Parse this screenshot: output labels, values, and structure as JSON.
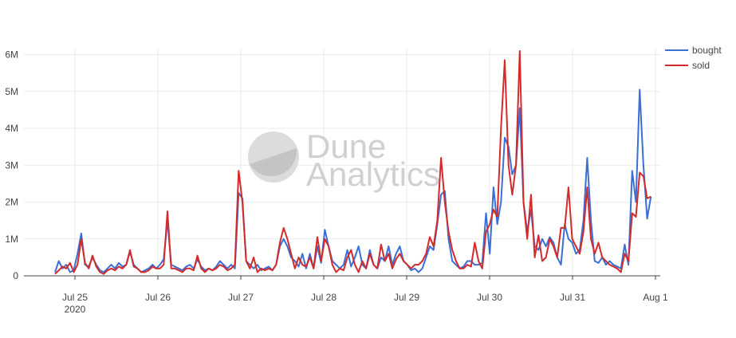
{
  "chart_data": {
    "type": "line",
    "title": "",
    "xlabel": "",
    "ylabel": "",
    "x_start": "Jul 24 2020 18:00",
    "x_step": "30 minutes",
    "x_ticks": [
      "Jul 25",
      "Jul 26",
      "Jul 27",
      "Jul 28",
      "Jul 29",
      "Jul 30",
      "Jul 31",
      "Aug 1"
    ],
    "x_tick_year": "2020",
    "y_ticks": [
      "0",
      "1M",
      "2M",
      "3M",
      "4M",
      "5M",
      "6M"
    ],
    "ylim": [
      0,
      6200000
    ],
    "grid": true,
    "legend_position": "top-right",
    "series": [
      {
        "name": "bought",
        "color": "#3a6fd6",
        "values": [
          100000,
          400000,
          200000,
          300000,
          100000,
          150000,
          600000,
          1150000,
          300000,
          250000,
          500000,
          300000,
          150000,
          100000,
          200000,
          300000,
          200000,
          350000,
          250000,
          300000,
          650000,
          300000,
          200000,
          100000,
          150000,
          200000,
          300000,
          200000,
          300000,
          450000,
          1500000,
          300000,
          250000,
          200000,
          150000,
          250000,
          300000,
          200000,
          450000,
          250000,
          150000,
          200000,
          150000,
          250000,
          400000,
          300000,
          200000,
          300000,
          200000,
          2250000,
          2100000,
          400000,
          300000,
          200000,
          300000,
          150000,
          200000,
          250000,
          150000,
          300000,
          800000,
          1000000,
          800000,
          500000,
          400000,
          250000,
          600000,
          200000,
          600000,
          200000,
          800000,
          350000,
          1250000,
          800000,
          400000,
          300000,
          200000,
          300000,
          700000,
          250000,
          500000,
          800000,
          300000,
          200000,
          700000,
          300000,
          200000,
          500000,
          400000,
          800000,
          300000,
          600000,
          800000,
          400000,
          300000,
          150000,
          200000,
          100000,
          200000,
          500000,
          800000,
          700000,
          1400000,
          2200000,
          2300000,
          1000000,
          400000,
          300000,
          200000,
          250000,
          400000,
          400000,
          300000,
          300000,
          350000,
          1700000,
          600000,
          2400000,
          1400000,
          2000000,
          3750000,
          3500000,
          2750000,
          3000000,
          4550000,
          2000000,
          1200000,
          1800000,
          800000,
          700000,
          1000000,
          800000,
          1050000,
          900000,
          500000,
          300000,
          1400000,
          1000000,
          900000,
          600000,
          700000,
          1500000,
          3200000,
          1500000,
          400000,
          350000,
          500000,
          300000,
          400000,
          300000,
          250000,
          200000,
          850000,
          300000,
          2850000,
          2000000,
          5050000,
          3000000,
          1550000,
          2150000
        ]
      },
      {
        "name": "sold",
        "color": "#d42a2a",
        "values": [
          50000,
          150000,
          250000,
          200000,
          350000,
          100000,
          300000,
          1000000,
          350000,
          200000,
          550000,
          250000,
          100000,
          50000,
          150000,
          200000,
          150000,
          250000,
          200000,
          300000,
          700000,
          250000,
          200000,
          100000,
          100000,
          150000,
          250000,
          200000,
          200000,
          300000,
          1750000,
          200000,
          200000,
          150000,
          100000,
          200000,
          200000,
          150000,
          550000,
          200000,
          100000,
          200000,
          150000,
          200000,
          300000,
          250000,
          150000,
          200000,
          300000,
          2850000,
          2000000,
          400000,
          200000,
          500000,
          100000,
          200000,
          150000,
          200000,
          150000,
          300000,
          900000,
          1300000,
          1000000,
          600000,
          200000,
          500000,
          300000,
          250000,
          500000,
          200000,
          1050000,
          400000,
          1000000,
          800000,
          300000,
          100000,
          200000,
          150000,
          500000,
          700000,
          300000,
          100000,
          400000,
          200000,
          600000,
          300000,
          200000,
          850000,
          400000,
          600000,
          200000,
          450000,
          600000,
          400000,
          300000,
          200000,
          300000,
          300000,
          400000,
          600000,
          1050000,
          800000,
          1500000,
          3200000,
          2000000,
          1200000,
          700000,
          400000,
          200000,
          200000,
          300000,
          250000,
          900000,
          400000,
          200000,
          1200000,
          1400000,
          1800000,
          1600000,
          4000000,
          5850000,
          3000000,
          2200000,
          3000000,
          6100000,
          2000000,
          1000000,
          2200000,
          500000,
          1100000,
          400000,
          500000,
          1000000,
          800000,
          500000,
          1300000,
          1300000,
          2400000,
          1000000,
          800000,
          600000,
          1200000,
          2400000,
          1000000,
          600000,
          900000,
          500000,
          400000,
          300000,
          250000,
          200000,
          100000,
          600000,
          400000,
          1700000,
          1600000,
          2800000,
          2700000,
          2100000,
          2150000
        ]
      }
    ]
  },
  "watermark": {
    "line1": "Dune",
    "line2": "Analytics"
  }
}
